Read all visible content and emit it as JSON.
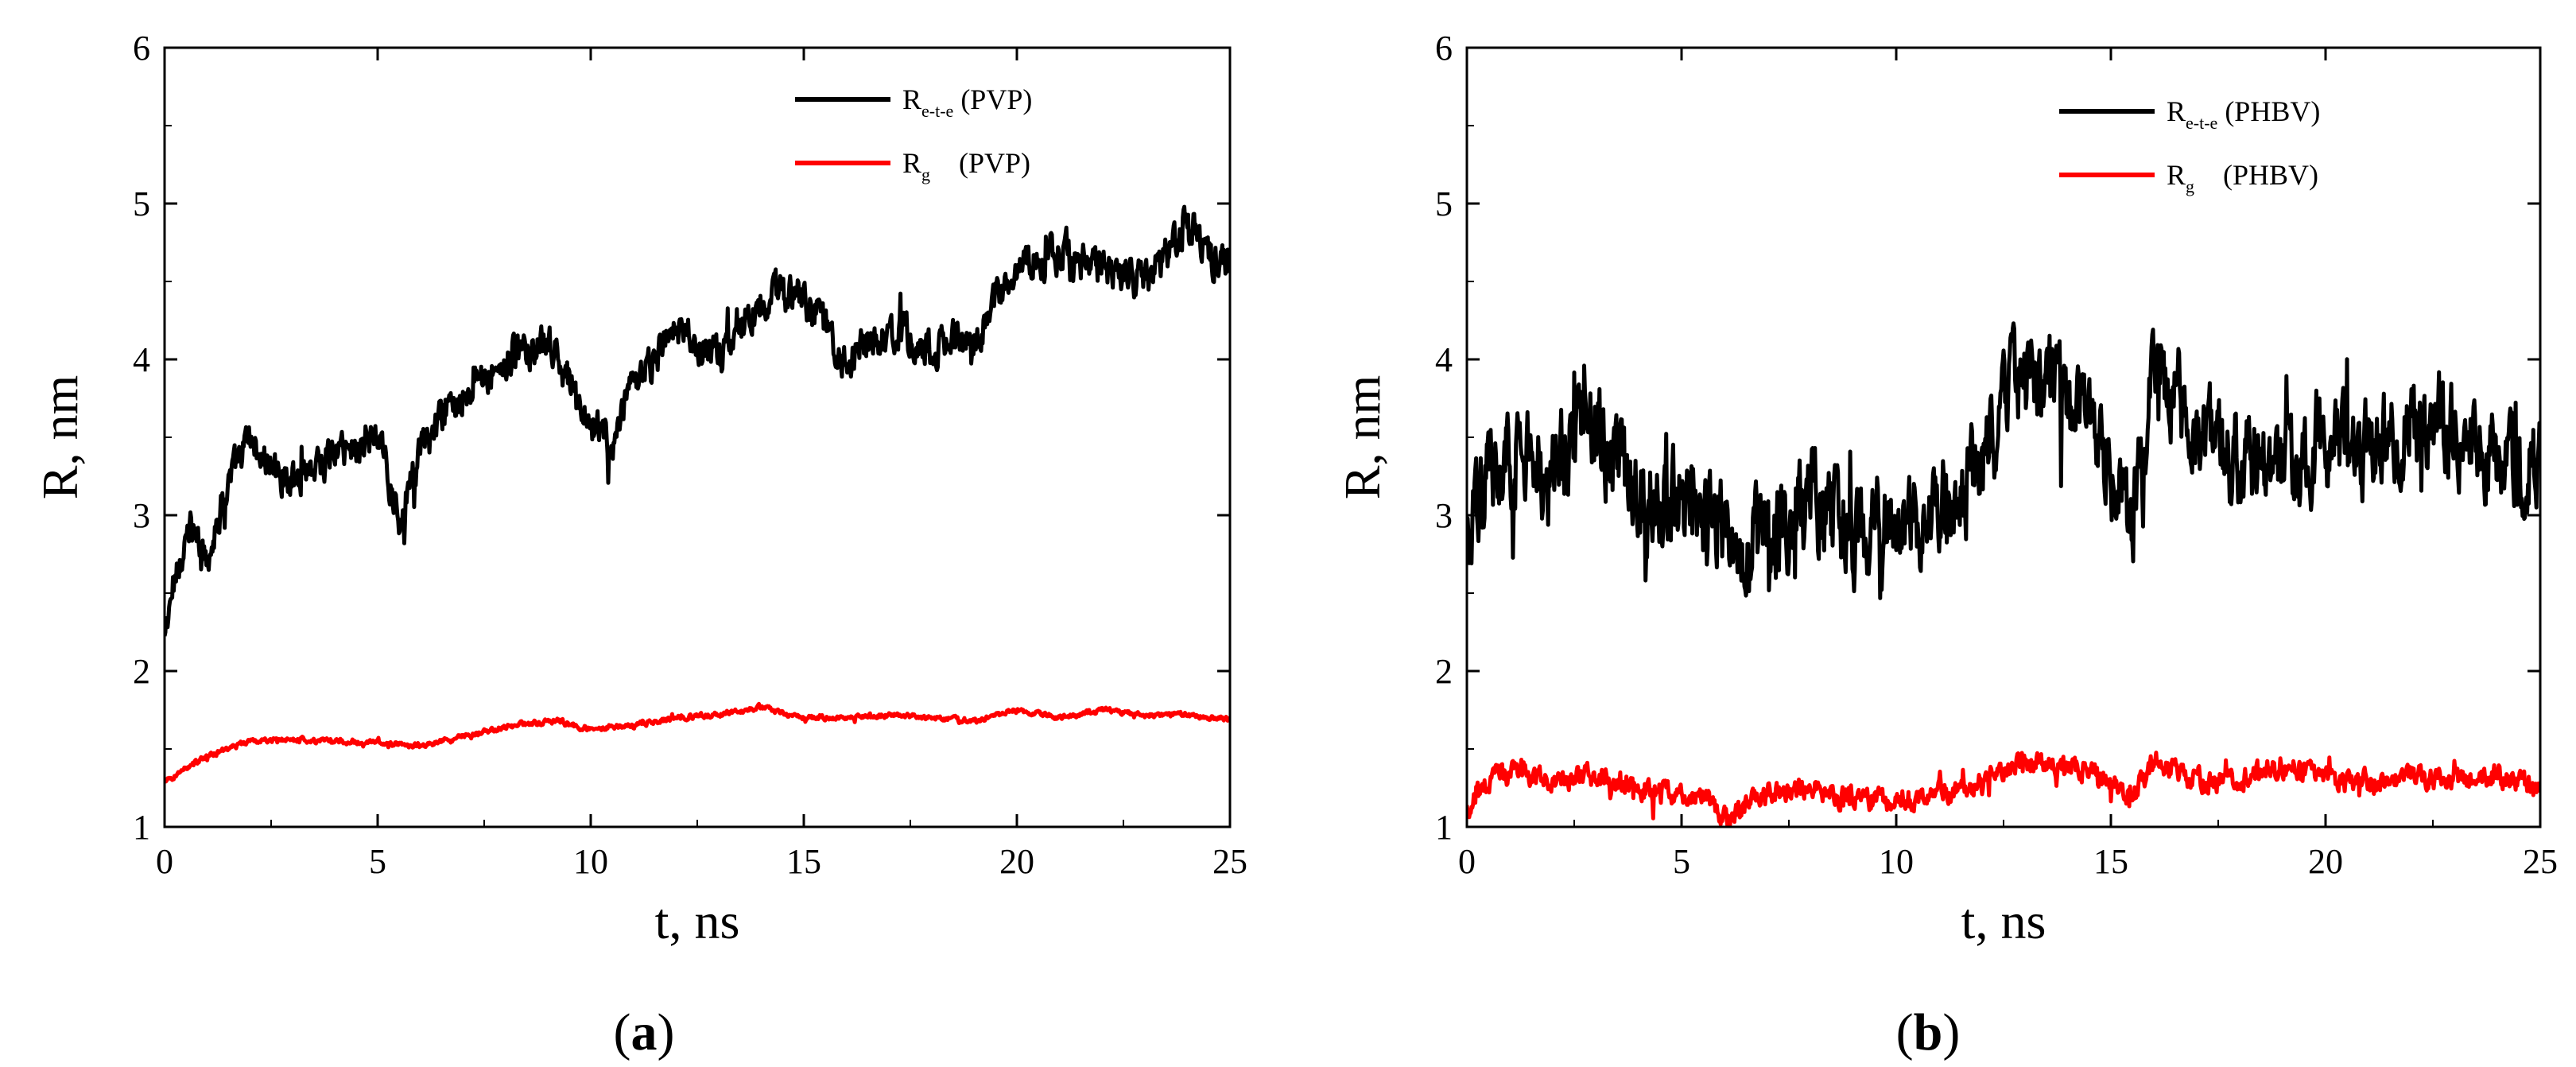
{
  "chart_data": [
    {
      "type": "line",
      "panel_label": {
        "open": "(",
        "letter": "a",
        "close": ")"
      },
      "xlabel": "t, ns",
      "ylabel": "R, nm",
      "xlim": [
        0,
        25
      ],
      "ylim": [
        1,
        6
      ],
      "x_ticks": [
        0,
        5,
        10,
        15,
        20,
        25
      ],
      "y_ticks": [
        1,
        2,
        3,
        4,
        5,
        6
      ],
      "grid": false,
      "legend_position": "top-right",
      "series": [
        {
          "legend_main": "R",
          "legend_sub": "e-t-e",
          "legend_rest": " (PVP)",
          "color": "#000000",
          "x": [
            0,
            0.3,
            0.6,
            1,
            1.5,
            2,
            2.5,
            3,
            4,
            5,
            5.5,
            6,
            7,
            8,
            9,
            10,
            10.5,
            11,
            12,
            13,
            14,
            15,
            16,
            17,
            18,
            19,
            20,
            21,
            22,
            23,
            24,
            24.5,
            25
          ],
          "values": [
            2.2,
            2.7,
            2.9,
            2.75,
            3.2,
            3.5,
            3.3,
            3.25,
            3.4,
            3.5,
            3.0,
            3.4,
            3.8,
            4.0,
            4.1,
            3.6,
            3.45,
            3.8,
            4.2,
            4.0,
            4.4,
            4.4,
            4.0,
            4.2,
            4.05,
            4.15,
            4.6,
            4.7,
            4.55,
            4.5,
            4.9,
            4.7,
            4.55
          ],
          "noise": 0.09
        },
        {
          "legend_main": "R",
          "legend_sub": "g",
          "legend_rest": "    (PVP)",
          "color": "#ff0000",
          "x": [
            0,
            0.5,
            1,
            2,
            3,
            4,
            5,
            6,
            7,
            8,
            9,
            10,
            11,
            12,
            13,
            14,
            15,
            16,
            17,
            18,
            19,
            20,
            21,
            22,
            23,
            24,
            25
          ],
          "values": [
            1.28,
            1.38,
            1.45,
            1.55,
            1.56,
            1.55,
            1.54,
            1.52,
            1.58,
            1.64,
            1.68,
            1.63,
            1.65,
            1.7,
            1.72,
            1.77,
            1.7,
            1.7,
            1.72,
            1.7,
            1.68,
            1.75,
            1.7,
            1.75,
            1.72,
            1.72,
            1.69
          ],
          "noise": 0.012
        }
      ]
    },
    {
      "type": "line",
      "panel_label": {
        "open": "(",
        "letter": "b",
        "close": ")"
      },
      "xlabel": "t, ns",
      "ylabel": "R, nm",
      "xlim": [
        0,
        25
      ],
      "ylim": [
        1,
        6
      ],
      "x_ticks": [
        0,
        5,
        10,
        15,
        20,
        25
      ],
      "y_ticks": [
        1,
        2,
        3,
        4,
        5,
        6
      ],
      "grid": false,
      "legend_position": "top-right",
      "series": [
        {
          "legend_main": "R",
          "legend_sub": "e-t-e",
          "legend_rest": " (PHBV)",
          "color": "#000000",
          "x": [
            0,
            0.5,
            1,
            2,
            2.8,
            3.5,
            4,
            5,
            6,
            7,
            8,
            9,
            10,
            11,
            12,
            13,
            13.5,
            14,
            15,
            15.5,
            16,
            16.5,
            17,
            18,
            19,
            20,
            21,
            22,
            23,
            24,
            25
          ],
          "values": [
            2.7,
            3.3,
            3.4,
            3.25,
            3.7,
            3.3,
            3.2,
            3.1,
            2.9,
            2.85,
            3.1,
            2.9,
            2.95,
            3.0,
            3.3,
            3.95,
            3.85,
            3.7,
            3.3,
            2.9,
            3.9,
            3.8,
            3.5,
            3.35,
            3.3,
            3.45,
            3.4,
            3.55,
            3.6,
            3.35,
            3.3
          ],
          "noise": 0.22
        },
        {
          "legend_main": "R",
          "legend_sub": "g",
          "legend_rest": "    (PHBV)",
          "color": "#ff0000",
          "x": [
            0,
            0.5,
            1,
            2,
            3,
            4,
            5,
            5.5,
            6,
            7,
            8,
            9,
            10,
            11,
            12,
            13,
            14,
            15,
            15.5,
            16,
            17,
            18,
            19,
            20,
            21,
            22,
            23,
            24,
            25
          ],
          "values": [
            1.12,
            1.3,
            1.35,
            1.3,
            1.32,
            1.25,
            1.2,
            1.2,
            1.05,
            1.22,
            1.26,
            1.18,
            1.17,
            1.22,
            1.28,
            1.42,
            1.4,
            1.3,
            1.2,
            1.42,
            1.3,
            1.3,
            1.4,
            1.3,
            1.28,
            1.32,
            1.3,
            1.33,
            1.26
          ],
          "noise": 0.05
        }
      ]
    }
  ]
}
